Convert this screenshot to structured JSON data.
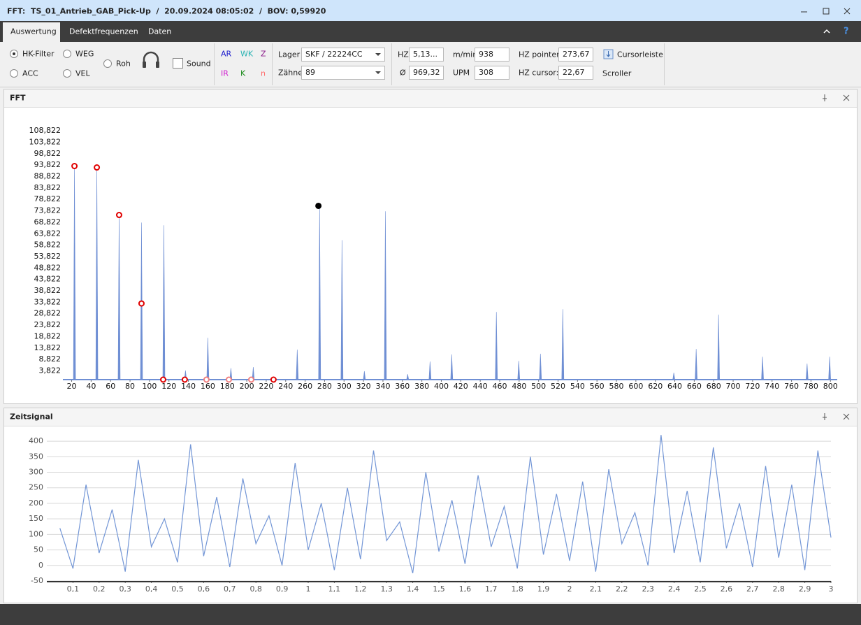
{
  "window": {
    "title": "FFT:  TS_01_Antrieb_GAB_Pick-Up  /  20.09.2024 08:05:02  /  BOV: 0,59920"
  },
  "tabs": [
    "Auswertung",
    "Defektfrequenzen",
    "Daten"
  ],
  "help": "?",
  "toolbar": {
    "radios": [
      "HK-Filter",
      "ACC",
      "WEG",
      "VEL",
      "Roh"
    ],
    "sound": "Sound",
    "codes": [
      {
        "label": "AR",
        "color": "#1a1acc"
      },
      {
        "label": "WK",
        "color": "#2ab3b3"
      },
      {
        "label": "Z",
        "color": "#8a1a8a"
      },
      {
        "label": "IR",
        "color": "#d020d0"
      },
      {
        "label": "K",
        "color": "#1a8a1a"
      },
      {
        "label": "n",
        "color": "#ff6a6a"
      }
    ],
    "lager_label": "Lager",
    "lager_value": "SKF / 22224CC",
    "zaehne_label": "Zähne",
    "zaehne_value": "89",
    "hz_label": "HZ",
    "hz_value": "5,13...",
    "avg_label": "Ø",
    "avg_value": "969,32",
    "mmin_label": "m/min",
    "mmin_value": "938",
    "upm_label": "UPM",
    "upm_value": "308",
    "hz_pointer_label": "HZ pointer:",
    "hz_pointer_value": "273,67",
    "hz_cursor_label": "HZ cursor:",
    "hz_cursor_value": "22,67",
    "cursorleiste": "Cursorleiste",
    "scroller": "Scroller"
  },
  "chart_data": [
    {
      "type": "stem",
      "title": "FFT",
      "color": "#6f8fd4",
      "xlim": [
        11,
        807
      ],
      "ylim": [
        0,
        111
      ],
      "xticks": [
        20,
        40,
        60,
        80,
        100,
        120,
        140,
        160,
        180,
        200,
        220,
        240,
        260,
        280,
        300,
        320,
        340,
        360,
        380,
        400,
        420,
        440,
        460,
        480,
        500,
        520,
        540,
        560,
        580,
        600,
        620,
        640,
        660,
        680,
        700,
        720,
        740,
        760,
        780,
        800
      ],
      "yticks": [
        {
          "value": 3.822,
          "label": "3,822"
        },
        {
          "value": 8.822,
          "label": "8,822"
        },
        {
          "value": 13.822,
          "label": "13,822"
        },
        {
          "value": 18.822,
          "label": "18,822"
        },
        {
          "value": 23.822,
          "label": "23,822"
        },
        {
          "value": 28.822,
          "label": "28,822"
        },
        {
          "value": 33.822,
          "label": "33,822"
        },
        {
          "value": 38.822,
          "label": "38,822"
        },
        {
          "value": 43.822,
          "label": "43,822"
        },
        {
          "value": 48.822,
          "label": "48,822"
        },
        {
          "value": 53.822,
          "label": "53,822"
        },
        {
          "value": 58.822,
          "label": "58,822"
        },
        {
          "value": 63.822,
          "label": "63,822"
        },
        {
          "value": 68.822,
          "label": "68,822"
        },
        {
          "value": 73.822,
          "label": "73,822"
        },
        {
          "value": 78.822,
          "label": "78,822"
        },
        {
          "value": 83.822,
          "label": "83,822"
        },
        {
          "value": 88.822,
          "label": "88,822"
        },
        {
          "value": 93.822,
          "label": "93,822"
        },
        {
          "value": 98.822,
          "label": "98,822"
        },
        {
          "value": 103.822,
          "label": "103,822"
        },
        {
          "value": 108.822,
          "label": "108,822"
        }
      ],
      "series": [
        {
          "x": [
            22.9,
            45.9,
            68.8,
            91.8,
            114.8,
            137,
            160,
            183.7,
            206.7,
            251.9,
            274.9,
            297.9,
            320.9,
            342.5,
            365.4,
            388.4,
            410.7,
            456.6,
            479.6,
            501.9,
            524.9,
            639,
            662,
            685,
            730.2,
            776,
            799.2
          ],
          "values": [
            93.8,
            93,
            72,
            68.7,
            67.5,
            4,
            18.3,
            5,
            5.5,
            13.1,
            75.4,
            61,
            3.7,
            73.6,
            2.4,
            7.9,
            11,
            29.6,
            8.2,
            11.3,
            30.8,
            3,
            13.4,
            28.4,
            10,
            7,
            10
          ]
        }
      ],
      "markers": {
        "x": [
          22.9,
          45.9,
          68.8,
          91.8,
          114.1,
          136.3,
          158.6,
          181.6,
          204.6,
          227.5
        ],
        "values": [
          93.4,
          92.8,
          72,
          33.3,
          0,
          0,
          0,
          0,
          0,
          0
        ],
        "colors": [
          "#e00000",
          "#e00000",
          "#e00000",
          "#e00000",
          "#e00000",
          "#e00000",
          "#f08080",
          "#f08080",
          "#f08080",
          "#e00000"
        ]
      },
      "cursor": {
        "x": 273.67,
        "value": 76,
        "color": "#000000"
      }
    },
    {
      "type": "line",
      "title": "Zeitsignal",
      "color": "#7396d6",
      "grid": true,
      "xlim": [
        0,
        3
      ],
      "ylim": [
        -50,
        425
      ],
      "xticks": [
        {
          "value": 0.1,
          "label": "0,1"
        },
        {
          "value": 0.2,
          "label": "0,2"
        },
        {
          "value": 0.3,
          "label": "0,3"
        },
        {
          "value": 0.4,
          "label": "0,4"
        },
        {
          "value": 0.5,
          "label": "0,5"
        },
        {
          "value": 0.6,
          "label": "0,6"
        },
        {
          "value": 0.7,
          "label": "0,7"
        },
        {
          "value": 0.8,
          "label": "0,8"
        },
        {
          "value": 0.9,
          "label": "0,9"
        },
        1,
        {
          "value": 1.1,
          "label": "1,1"
        },
        {
          "value": 1.2,
          "label": "1,2"
        },
        {
          "value": 1.3,
          "label": "1,3"
        },
        {
          "value": 1.4,
          "label": "1,4"
        },
        {
          "value": 1.5,
          "label": "1,5"
        },
        {
          "value": 1.6,
          "label": "1,6"
        },
        {
          "value": 1.7,
          "label": "1,7"
        },
        {
          "value": 1.8,
          "label": "1,8"
        },
        {
          "value": 1.9,
          "label": "1,9"
        },
        2,
        {
          "value": 2.1,
          "label": "2,1"
        },
        {
          "value": 2.2,
          "label": "2,2"
        },
        {
          "value": 2.3,
          "label": "2,3"
        },
        {
          "value": 2.4,
          "label": "2,4"
        },
        {
          "value": 2.5,
          "label": "2,5"
        },
        {
          "value": 2.6,
          "label": "2,6"
        },
        {
          "value": 2.7,
          "label": "2,7"
        },
        {
          "value": 2.8,
          "label": "2,8"
        },
        {
          "value": 2.9,
          "label": "2,9"
        },
        3
      ],
      "yticks": [
        -50,
        0,
        50,
        100,
        150,
        200,
        250,
        300,
        350,
        400
      ],
      "series": [
        {
          "x": [
            0.05,
            0.1,
            0.15,
            0.2,
            0.25,
            0.3,
            0.35,
            0.4,
            0.45,
            0.5,
            0.55,
            0.6,
            0.65,
            0.7,
            0.75,
            0.8,
            0.85,
            0.9,
            0.95,
            1,
            1.05,
            1.1,
            1.15,
            1.2,
            1.25,
            1.3,
            1.35,
            1.4,
            1.45,
            1.5,
            1.55,
            1.6,
            1.65,
            1.7,
            1.75,
            1.8,
            1.85,
            1.9,
            1.95,
            2,
            2.05,
            2.1,
            2.15,
            2.2,
            2.25,
            2.3,
            2.35,
            2.4,
            2.45,
            2.5,
            2.55,
            2.6,
            2.65,
            2.7,
            2.75,
            2.8,
            2.85,
            2.9,
            2.95,
            3
          ],
          "values": [
            120,
            -10,
            260,
            40,
            180,
            -20,
            340,
            60,
            150,
            10,
            390,
            30,
            220,
            -5,
            280,
            70,
            160,
            0,
            330,
            50,
            200,
            -15,
            250,
            20,
            370,
            80,
            140,
            -25,
            300,
            45,
            210,
            5,
            290,
            60,
            190,
            -10,
            350,
            35,
            230,
            15,
            270,
            -20,
            310,
            70,
            170,
            0,
            420,
            40,
            240,
            10,
            380,
            55,
            200,
            -5,
            320,
            25,
            260,
            -15,
            370,
            90
          ]
        }
      ]
    }
  ]
}
